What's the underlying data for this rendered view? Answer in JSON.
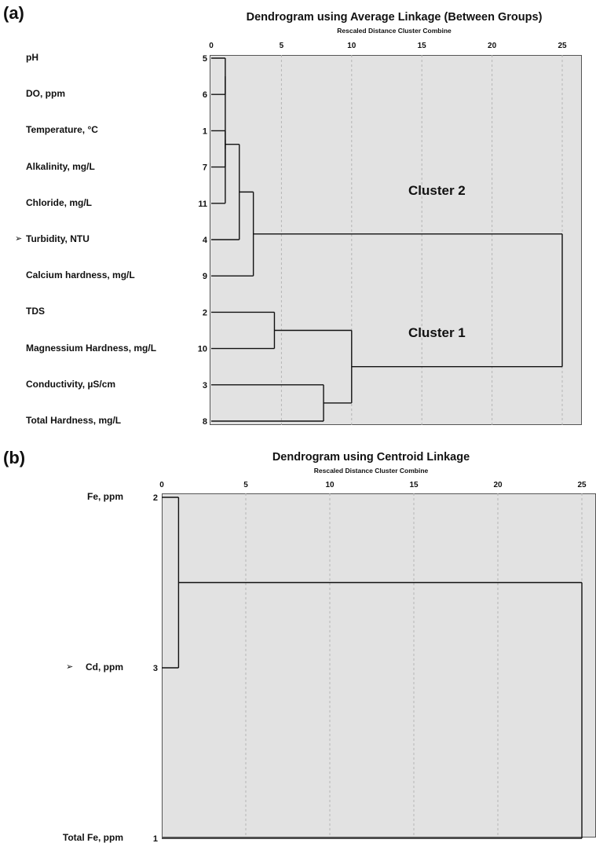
{
  "panel_a": {
    "letter": "(a)",
    "title": "Dendrogram using Average Linkage (Between Groups)",
    "subtitle": "Rescaled Distance Cluster Combine",
    "cluster_labels": [
      "Cluster 2",
      "Cluster 1"
    ]
  },
  "panel_b": {
    "letter": "(b)",
    "title": "Dendrogram using Centroid Linkage",
    "subtitle": "Rescaled Distance Cluster Combine"
  },
  "chart_data": [
    {
      "type": "dendrogram",
      "title": "Dendrogram using Average Linkage (Between Groups)",
      "xlabel": "Rescaled Distance Cluster Combine",
      "xlim": [
        0,
        25
      ],
      "xticks": [
        0,
        5,
        10,
        15,
        20,
        25
      ],
      "grid": true,
      "leaves": [
        {
          "label": "pH",
          "id": 5
        },
        {
          "label": "DO, ppm",
          "id": 6
        },
        {
          "label": "Temperature, °C",
          "id": 1
        },
        {
          "label": "Alkalinity, mg/L",
          "id": 7
        },
        {
          "label": "Chloride, mg/L",
          "id": 11
        },
        {
          "label": "Turbidity, NTU",
          "id": 4,
          "marked": true
        },
        {
          "label": "Calcium hardness, mg/L",
          "id": 9
        },
        {
          "label": "TDS",
          "id": 2
        },
        {
          "label": "Magnessium Hardness, mg/L",
          "id": 10
        },
        {
          "label": "Conductivity, µS/cm",
          "id": 3
        },
        {
          "label": "Total Hardness, mg/L",
          "id": 8
        }
      ],
      "merges": [
        {
          "left": 0,
          "right": 1,
          "distance": 1.0
        },
        {
          "left": "m0",
          "right": 4,
          "distance": 1.0
        },
        {
          "left": 2,
          "right": 3,
          "distance": 1.0
        },
        {
          "left": "m1",
          "right": "m2",
          "distance": 1.0
        },
        {
          "left": "m3",
          "right": 5,
          "distance": 2.0
        },
        {
          "left": "m4",
          "right": 6,
          "distance": 3.0
        },
        {
          "left": 7,
          "right": 8,
          "distance": 4.5
        },
        {
          "left": 9,
          "right": 10,
          "distance": 8.0
        },
        {
          "left": "m6",
          "right": "m7",
          "distance": 10.0
        },
        {
          "left": "m5",
          "right": "m8",
          "distance": 25.0
        }
      ]
    },
    {
      "type": "dendrogram",
      "title": "Dendrogram using Centroid Linkage",
      "xlabel": "Rescaled Distance Cluster Combine",
      "xlim": [
        0,
        25
      ],
      "xticks": [
        0,
        5,
        10,
        15,
        20,
        25
      ],
      "grid": true,
      "leaves": [
        {
          "label": "Fe, ppm",
          "id": 2
        },
        {
          "label": "Cd, ppm",
          "id": 3,
          "marked": true
        },
        {
          "label": "Total Fe, ppm",
          "id": 1
        }
      ],
      "merges": [
        {
          "left": 0,
          "right": 1,
          "distance": 1.0
        },
        {
          "left": "m0",
          "right": 2,
          "distance": 25.0
        }
      ]
    }
  ]
}
